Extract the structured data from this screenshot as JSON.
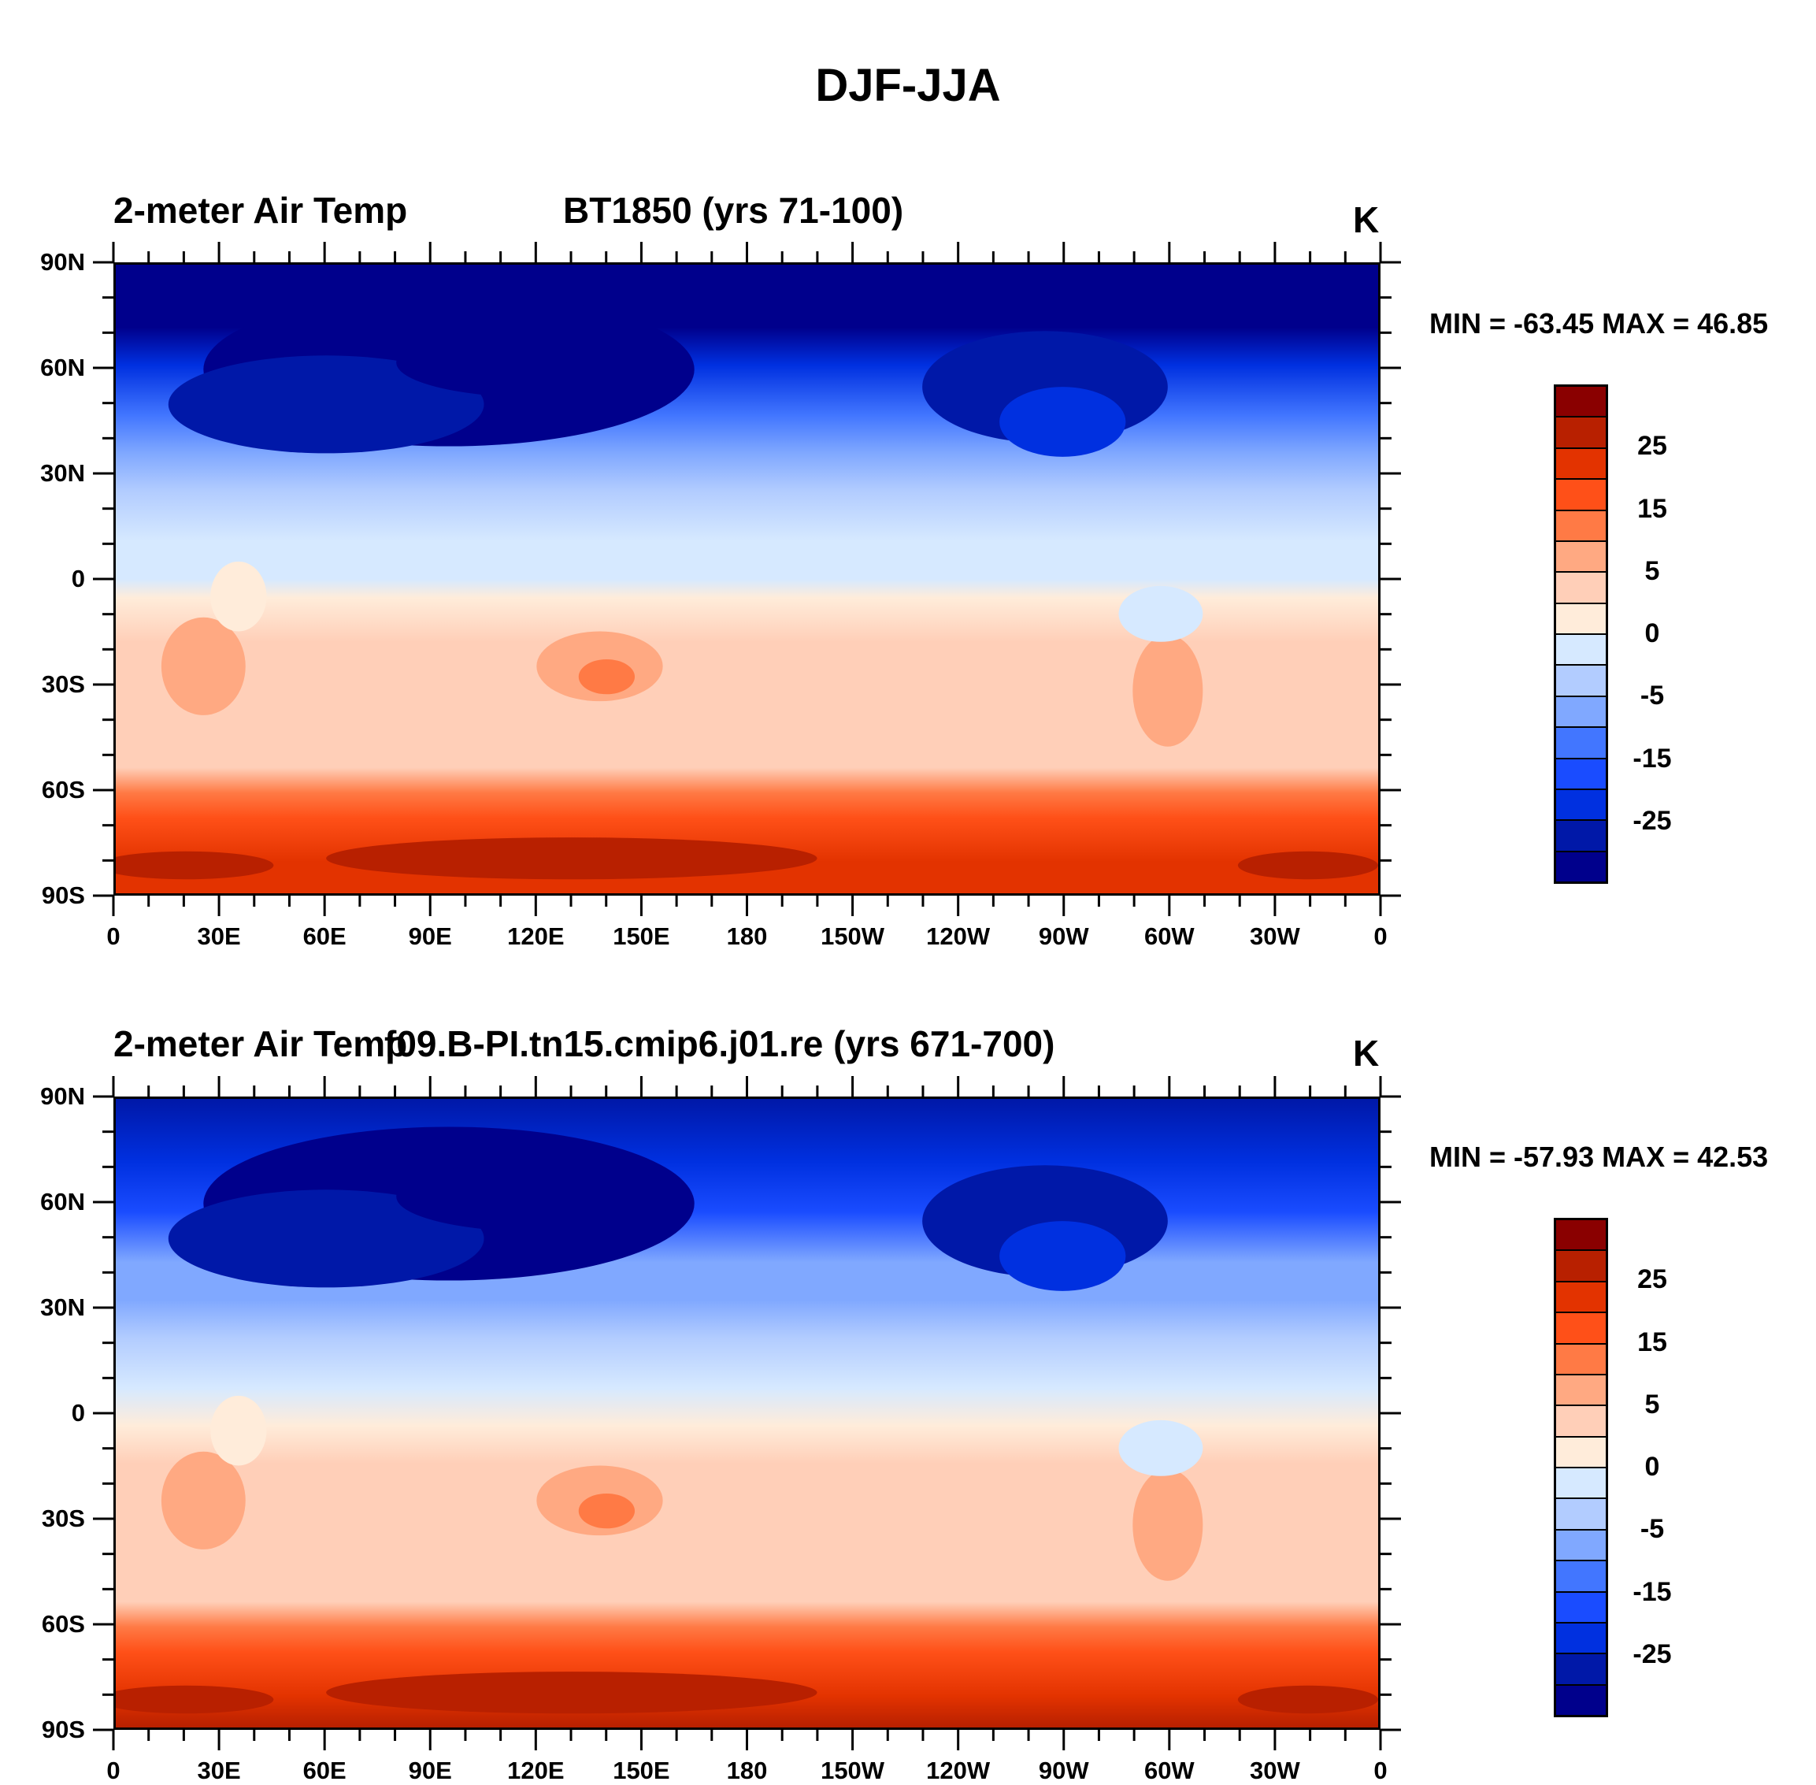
{
  "title": "DJF-JJA",
  "panels": [
    {
      "left_title": "2-meter Air Temp",
      "center_title": "BT1850 (yrs 71-100)",
      "units": "K",
      "minmax": "MIN = -63.45 MAX =  46.85",
      "min": -63.45,
      "max": 46.85
    },
    {
      "left_title": "2-meter Air Temp",
      "center_title": "f09.B-PI.tn15.cmip6.j01.re (yrs 671-700)",
      "units": "K",
      "minmax": "MIN = -57.93 MAX =  42.53",
      "min": -57.93,
      "max": 42.53
    }
  ],
  "lat_labels": [
    "90N",
    "60N",
    "30N",
    "0",
    "30S",
    "60S",
    "90S"
  ],
  "lon_labels": [
    "0",
    "30E",
    "60E",
    "90E",
    "120E",
    "150E",
    "180",
    "150W",
    "120W",
    "90W",
    "60W",
    "30W",
    "0"
  ],
  "colorbar": {
    "labels": [
      "25",
      "15",
      "5",
      "0",
      "-5",
      "-15",
      "-25"
    ],
    "colors": [
      "#8a0000",
      "#b82000",
      "#e33300",
      "#ff5018",
      "#ff7a45",
      "#ffa982",
      "#ffcfb8",
      "#ffecda",
      "#d6e9ff",
      "#b2ccff",
      "#80a8ff",
      "#4276ff",
      "#1a4cff",
      "#0030e0",
      "#0018a8",
      "#00008c"
    ]
  },
  "chart_data": {
    "type": "heatmap",
    "title": "DJF-JJA",
    "variable": "2-meter Air Temp",
    "units": "K",
    "xlabel": "",
    "ylabel": "",
    "x_ticks": [
      "0",
      "30E",
      "60E",
      "90E",
      "120E",
      "150E",
      "180",
      "150W",
      "120W",
      "90W",
      "60W",
      "30W",
      "0"
    ],
    "y_ticks": [
      "90N",
      "60N",
      "30N",
      "0",
      "30S",
      "60S",
      "90S"
    ],
    "contour_labels": [
      "25",
      "15",
      "5",
      "0",
      "-5",
      "-15",
      "-25"
    ],
    "series": [
      {
        "name": "BT1850 (yrs 71-100)",
        "min": -63.45,
        "max": 46.85
      },
      {
        "name": "f09.B-PI.tn15.cmip6.j01.re (yrs 671-700)",
        "min": -57.93,
        "max": 42.53
      }
    ]
  }
}
